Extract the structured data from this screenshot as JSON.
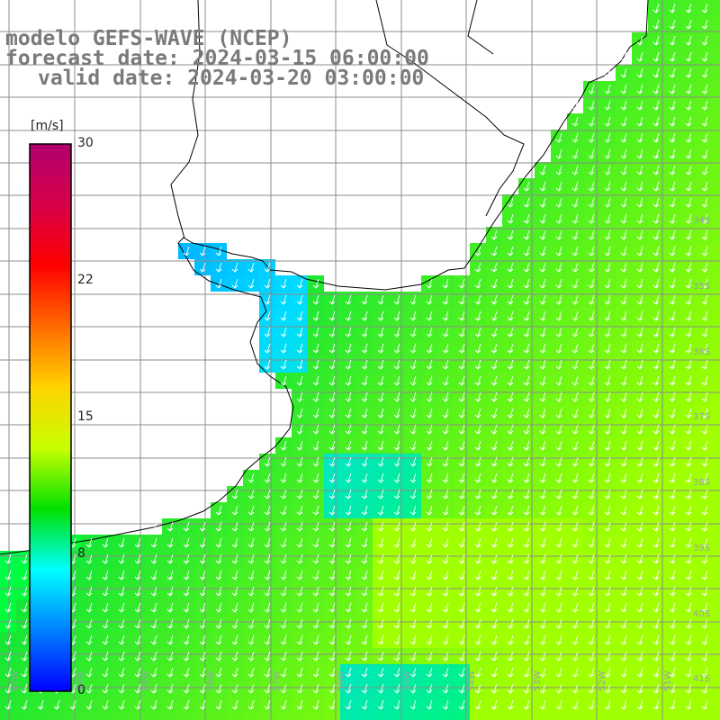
{
  "title": {
    "model": "modelo GEFS-WAVE (NCEP)",
    "forecast": "forecast date: 2024-03-15 06:00:00",
    "valid": "valid date: 2024-03-20 03:00:00"
  },
  "colorbar": {
    "unit": "[m/s]",
    "ticks": [
      "30",
      "22",
      "15",
      "8",
      "0"
    ],
    "colors": [
      "#b0006e",
      "#d7004a",
      "#ff0000",
      "#ff6a00",
      "#ffd200",
      "#c8ff00",
      "#00e000",
      "#00ffff",
      "#0080ff",
      "#0000ff"
    ]
  },
  "grid_labels": {
    "lat": [
      "34S",
      "35S",
      "36S",
      "37S",
      "38S",
      "39S",
      "40S",
      "41S"
    ],
    "lon": [
      "61W",
      "60W",
      "59W",
      "58W",
      "57W",
      "56W",
      "55W",
      "54W",
      "53W",
      "52W",
      "51W"
    ]
  },
  "colors": {
    "grid": "#8c8c8c",
    "coast": "#000000",
    "arrow": "#ffffff"
  }
}
